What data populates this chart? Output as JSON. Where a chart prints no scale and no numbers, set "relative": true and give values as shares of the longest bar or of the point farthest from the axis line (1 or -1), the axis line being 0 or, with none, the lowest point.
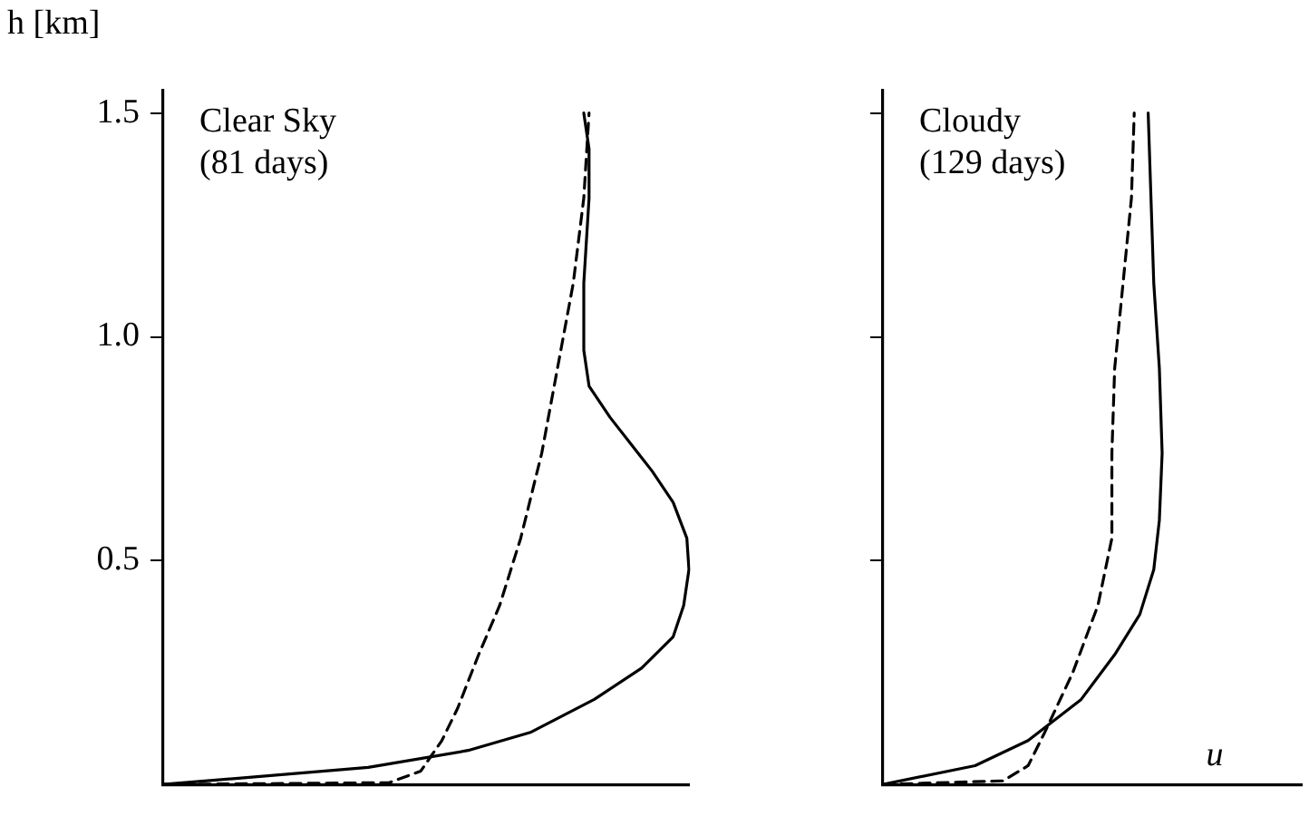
{
  "chart_data": [
    {
      "type": "line",
      "orientation": "horizontal",
      "relative": true,
      "ylabel": "h [km]",
      "tick_labels": "y",
      "ylim": [
        0,
        1.55
      ],
      "yticks": [
        {
          "value": 0.5,
          "label": "0.5"
        },
        {
          "value": 1,
          "label": "1.0"
        },
        {
          "value": 1.5,
          "label": "1.5"
        }
      ],
      "grid": false,
      "legend": false,
      "marker": "none",
      "annotations": [
        "Clear Sky\n(81 days)"
      ],
      "series": [
        {
          "color": "#000000",
          "line_style": "solid",
          "values": [
            0,
            0.39,
            0.58,
            0.7,
            0.82,
            0.91,
            0.97,
            0.99,
            1.0,
            0.996,
            0.97,
            0.93,
            0.89,
            0.85,
            0.81,
            0.8,
            0.8,
            0.81,
            0.81,
            0.8
          ],
          "x": [
            0,
            0.038,
            0.076,
            0.117,
            0.19,
            0.26,
            0.33,
            0.4,
            0.48,
            0.55,
            0.63,
            0.7,
            0.76,
            0.82,
            0.89,
            0.97,
            1.12,
            1.31,
            1.42,
            1.5
          ]
        },
        {
          "color": "#000000",
          "line_style": "dashed",
          "values": [
            0,
            0.43,
            0.49,
            0.53,
            0.56,
            0.6,
            0.64,
            0.68,
            0.72,
            0.75,
            0.78,
            0.8,
            0.81
          ],
          "x": [
            0,
            0.004,
            0.03,
            0.098,
            0.17,
            0.29,
            0.4,
            0.55,
            0.74,
            0.93,
            1.12,
            1.31,
            1.5
          ]
        }
      ]
    },
    {
      "type": "line",
      "orientation": "horizontal",
      "relative": true,
      "xlabel": "u",
      "tick_labels": false,
      "ylim": [
        0,
        1.55
      ],
      "yticks": [
        {
          "value": 0.5,
          "label": null
        },
        {
          "value": 1,
          "label": null
        },
        {
          "value": 1.5,
          "label": null
        }
      ],
      "grid": false,
      "legend": false,
      "marker": "none",
      "annotations": [
        "Cloudy\n(129 days)"
      ],
      "series": [
        {
          "color": "#000000",
          "line_style": "solid",
          "values": [
            0,
            0.33,
            0.52,
            0.71,
            0.83,
            0.92,
            0.97,
            0.99,
            1.0,
            0.99,
            0.97,
            0.96,
            0.95
          ],
          "x": [
            0,
            0.042,
            0.098,
            0.19,
            0.29,
            0.38,
            0.48,
            0.59,
            0.74,
            0.93,
            1.12,
            1.31,
            1.5
          ]
        },
        {
          "color": "#000000",
          "line_style": "dashed",
          "values": [
            0,
            0.43,
            0.52,
            0.58,
            0.68,
            0.77,
            0.82,
            0.82,
            0.83,
            0.86,
            0.89,
            0.9
          ],
          "x": [
            0,
            0.008,
            0.042,
            0.117,
            0.25,
            0.4,
            0.55,
            0.74,
            0.93,
            1.12,
            1.31,
            1.5
          ]
        }
      ]
    }
  ]
}
